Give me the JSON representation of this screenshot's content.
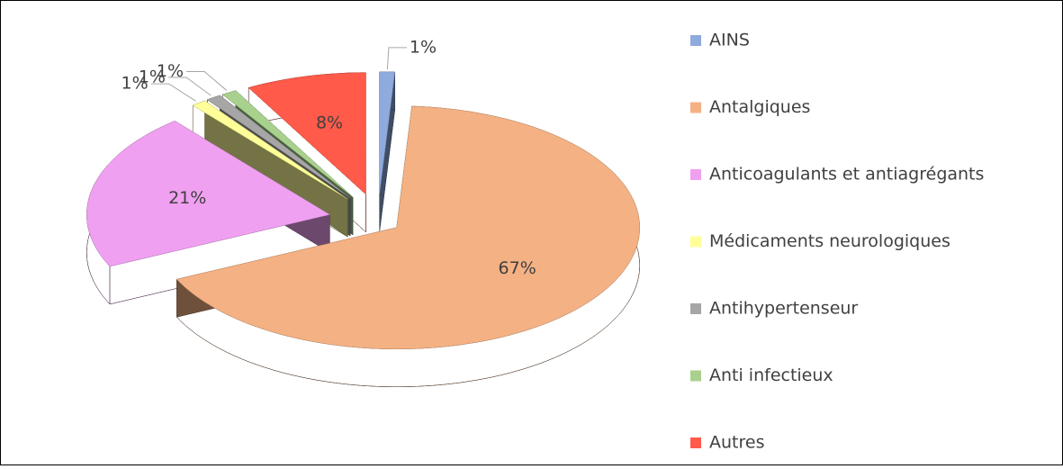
{
  "chart_data": {
    "type": "pie",
    "categories": [
      "AINS",
      "Antalgiques",
      "Anticoagulants et antiagrégants",
      "Médicaments neurologiques",
      "Antihypertenseur",
      "Anti infectieux",
      "Autres"
    ],
    "values": [
      1,
      67,
      21,
      1,
      1,
      1,
      8
    ],
    "value_labels": [
      "1%",
      "67%",
      "21%",
      "1%",
      "1%",
      "1%",
      "8%"
    ],
    "colors": [
      "#8faadc",
      "#f4b183",
      "#f0a0f0",
      "#ffff99",
      "#a6a6a6",
      "#a9d18e",
      "#ff5a4a"
    ],
    "legend": "right"
  }
}
